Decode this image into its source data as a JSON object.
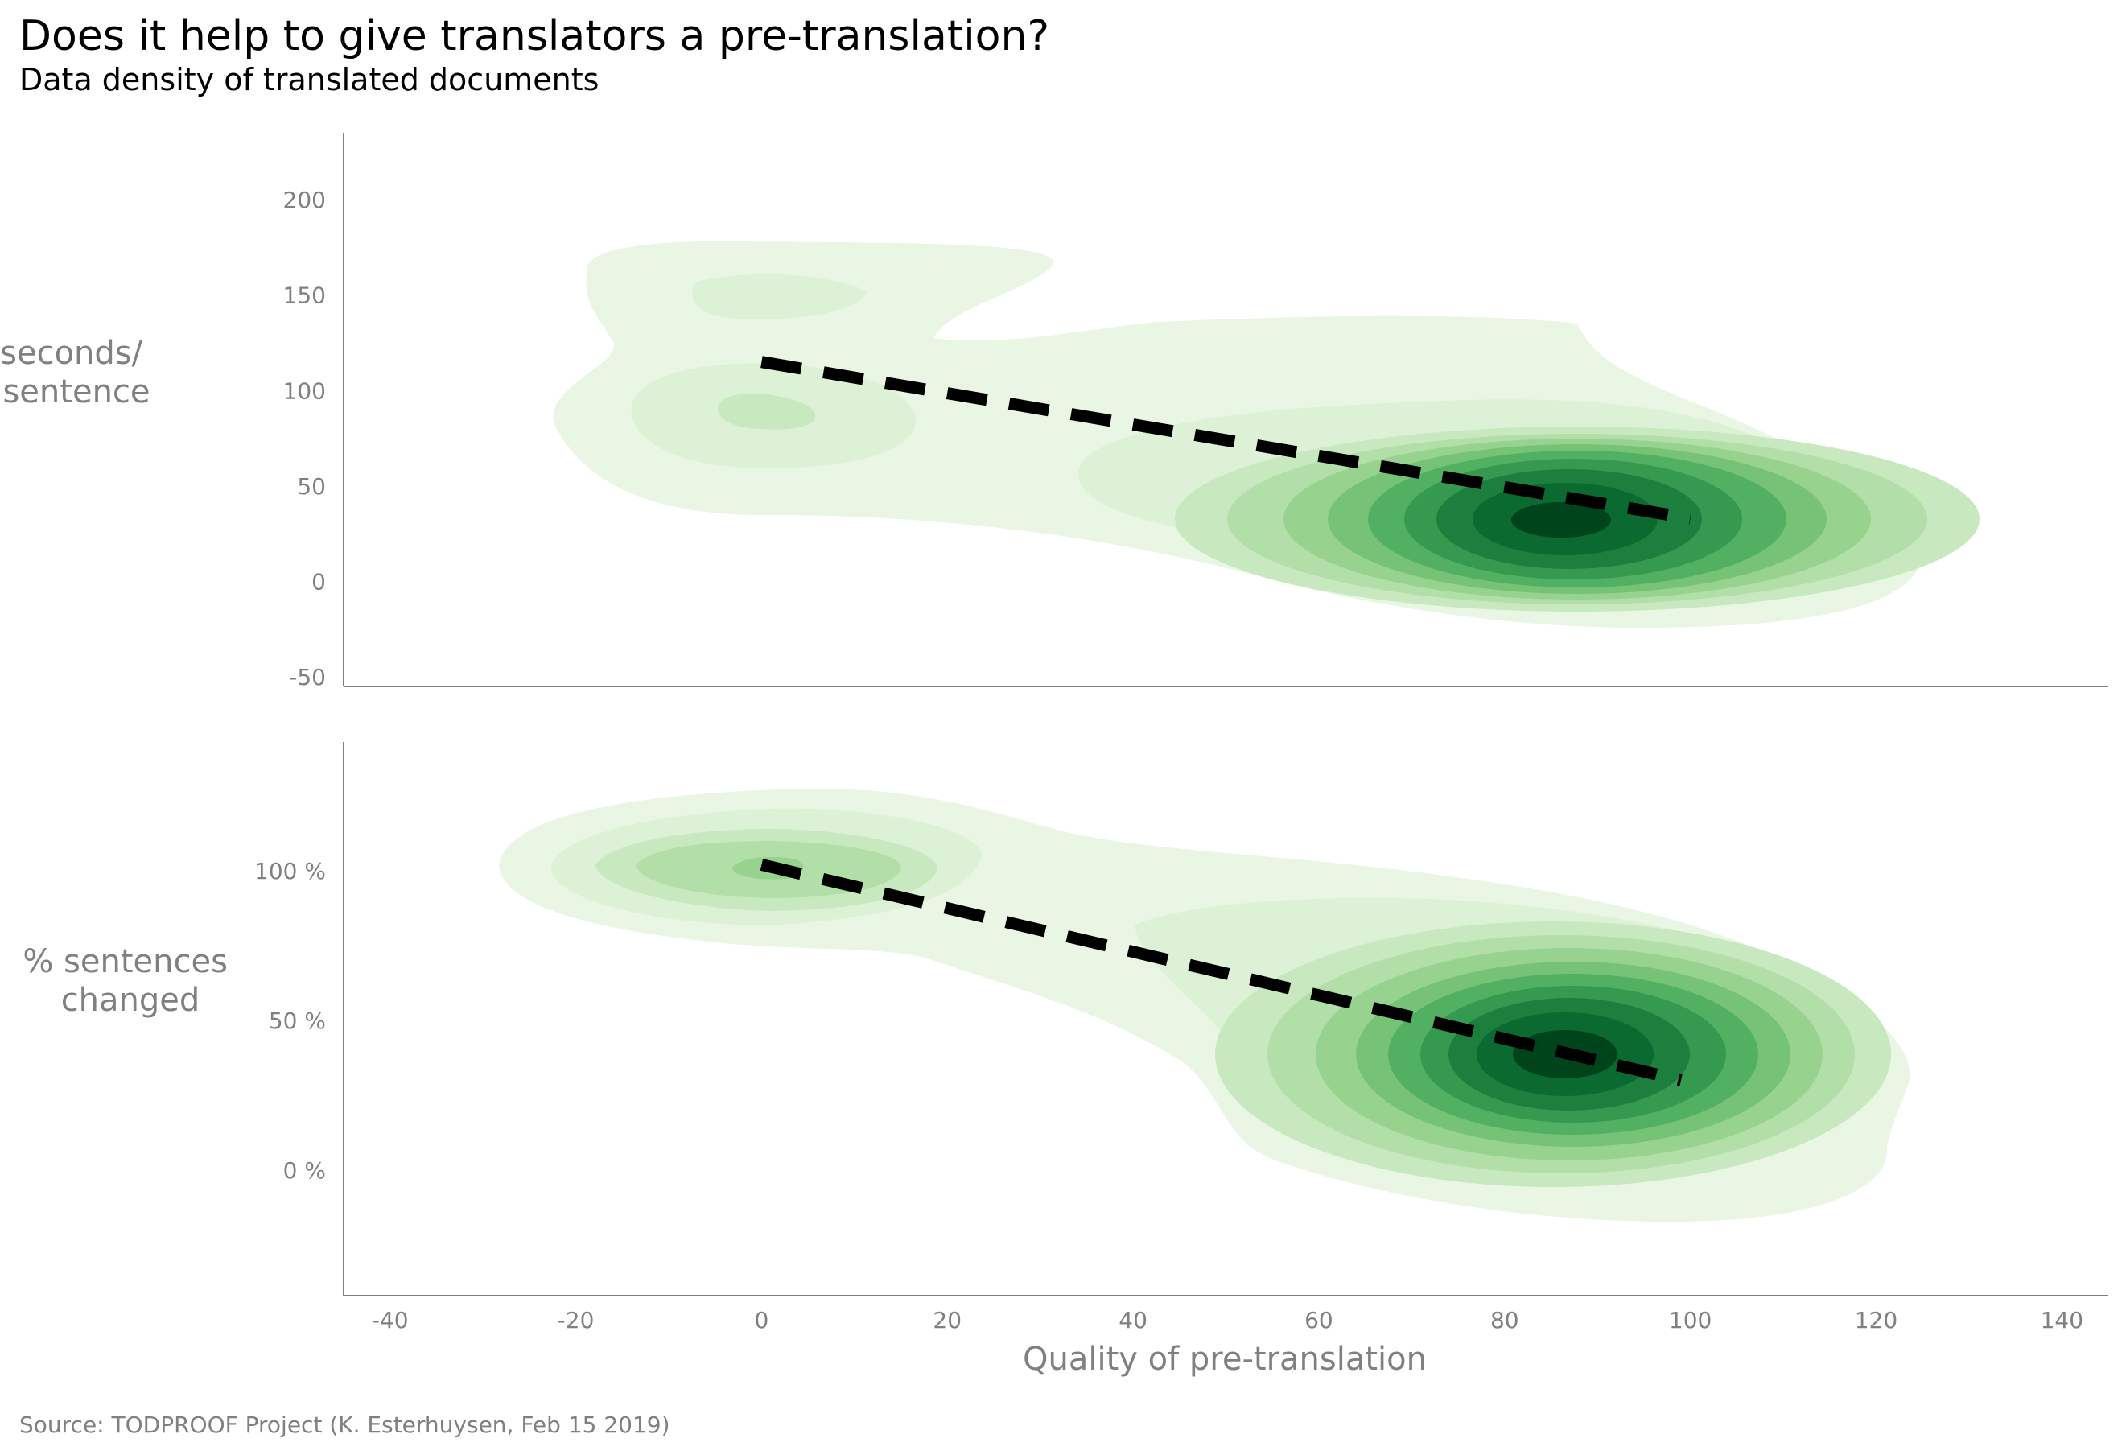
{
  "title": "Does it help to give translators a pre-translation?",
  "subtitle": "Data density of translated documents",
  "source": "Source: TODPROOF Project (K. Esterhuysen, Feb 15 2019)",
  "colors": {
    "density_levels": [
      "#e8f6e3",
      "#ddf1d7",
      "#c8e8c0",
      "#b2dfa8",
      "#97d38f",
      "#76c378",
      "#52b062",
      "#35994f",
      "#1d7f3d",
      "#0a6a2f",
      "#00441b"
    ],
    "trend_line": "#000000",
    "axis": "#808080"
  },
  "chart_data": [
    {
      "type": "kde-density",
      "xlabel": "Quality of pre-translation",
      "ylabel": "seconds/ sentence",
      "ylabel_lines": [
        "seconds/",
        "sentence"
      ],
      "xlim": [
        -45,
        145
      ],
      "ylim": [
        -55,
        235
      ],
      "xticks": [
        "-40",
        "-20",
        "0",
        "20",
        "40",
        "60",
        "80",
        "100",
        "120",
        "140"
      ],
      "yticks": [
        "-50",
        "0",
        "50",
        "100",
        "150",
        "200"
      ],
      "trend_line": {
        "style": "dashed",
        "x": [
          0,
          100
        ],
        "y": [
          115,
          33
        ]
      },
      "density_peaks": [
        {
          "x": 86,
          "y": 33,
          "intensity": "highest"
        },
        {
          "x": 0,
          "y": 90,
          "intensity": "low"
        },
        {
          "x": 3,
          "y": 150,
          "intensity": "low"
        }
      ]
    },
    {
      "type": "kde-density",
      "xlabel": "Quality of pre-translation",
      "ylabel": "% sentences changed",
      "ylabel_lines": [
        "% sentences",
        "changed"
      ],
      "xlim": [
        -45,
        145
      ],
      "ylim": [
        -42,
        143
      ],
      "xticks": [
        "-40",
        "-20",
        "0",
        "20",
        "40",
        "60",
        "80",
        "100",
        "120",
        "140"
      ],
      "yticks": [
        "0 %",
        "50 %",
        "100 %"
      ],
      "ytick_values": [
        0,
        50,
        100
      ],
      "trend_line": {
        "style": "dashed",
        "x": [
          0,
          99
        ],
        "y": [
          102,
          30
        ]
      },
      "density_peaks": [
        {
          "x": 86,
          "y": 38,
          "intensity": "highest"
        },
        {
          "x": 0,
          "y": 100,
          "intensity": "medium"
        }
      ]
    }
  ]
}
